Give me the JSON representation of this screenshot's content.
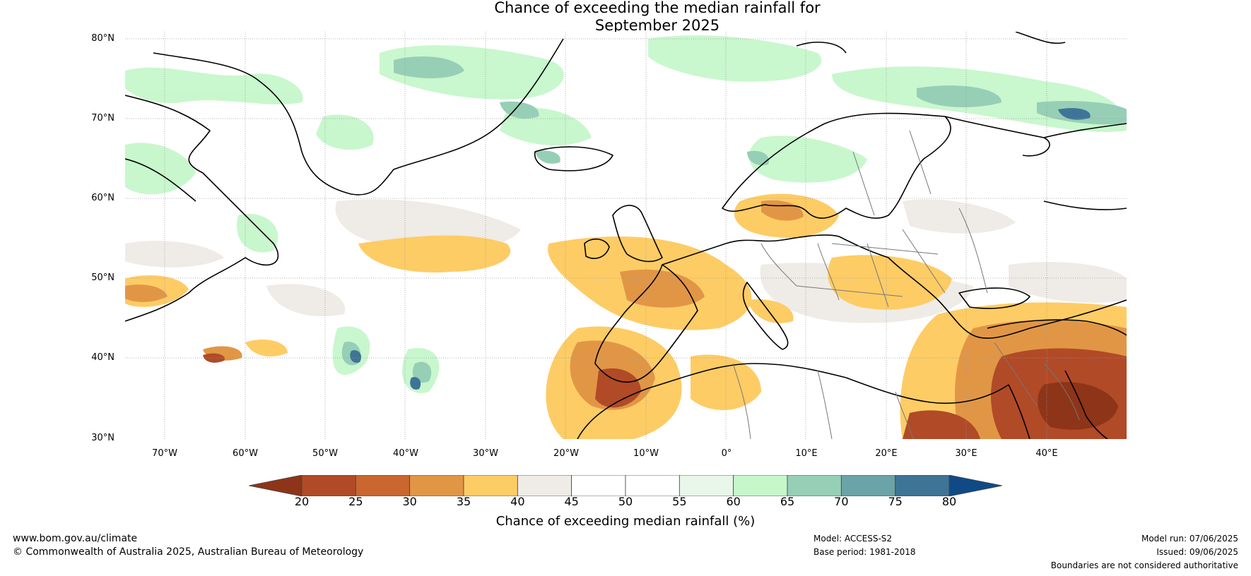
{
  "title": {
    "line1": "Chance of exceeding the median rainfall for",
    "line2": "September 2025"
  },
  "map": {
    "latitudes": [
      "80°N",
      "70°N",
      "60°N",
      "50°N",
      "40°N",
      "30°N"
    ],
    "longitudes": [
      "70°W",
      "60°W",
      "50°W",
      "40°W",
      "30°W",
      "20°W",
      "10°W",
      "0°",
      "10°E",
      "20°E",
      "30°E",
      "40°E"
    ]
  },
  "colorbar": {
    "ticks": [
      "20",
      "25",
      "30",
      "35",
      "40",
      "45",
      "50",
      "55",
      "60",
      "65",
      "70",
      "75",
      "80"
    ],
    "colors": [
      "#8e3418",
      "#b14a27",
      "#ca6630",
      "#e19646",
      "#fecc65",
      "#efebe7",
      "#ffffff",
      "#ffffff",
      "#e8f7e9",
      "#c6f7cb",
      "#96cfb6",
      "#6aa4a8",
      "#3e7495",
      "#0f4a86"
    ],
    "label": "Chance of exceeding median rainfall (%)"
  },
  "footer": {
    "website": "www.bom.gov.au/climate",
    "copyright": "© Commonwealth of Australia 2025, Australian Bureau of Meteorology",
    "model": "Model: ACCESS-S2",
    "base_period": "Base period: 1981-2018",
    "model_run": "Model run: 07/06/2025",
    "issued": "Issued: 09/06/2025",
    "disclaimer": "Boundaries are not considered authoritative"
  }
}
